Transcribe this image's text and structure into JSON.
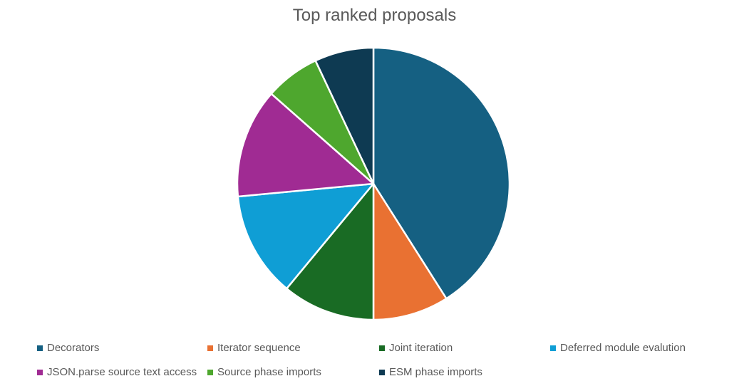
{
  "chart_data": {
    "type": "pie",
    "title": "Top ranked proposals",
    "categories": [
      "Decorators",
      "Iterator sequence",
      "Joint iteration",
      "Deferred module evalution",
      "JSON.parse source text access",
      "Source phase imports",
      "ESM phase imports"
    ],
    "values": [
      41,
      9,
      11,
      12.5,
      13,
      6.5,
      7
    ],
    "colors": [
      "#156082",
      "#E97132",
      "#196B24",
      "#0F9ED5",
      "#A02B93",
      "#4EA72E",
      "#0E3A52"
    ],
    "legend_position": "bottom"
  }
}
